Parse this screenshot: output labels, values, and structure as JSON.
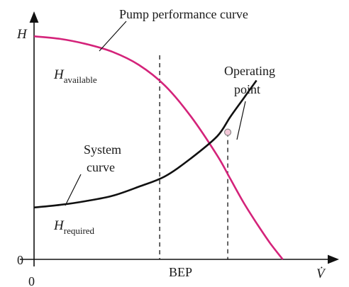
{
  "chart_data": {
    "type": "line",
    "title": "",
    "xlabel": "V̇",
    "ylabel": "H",
    "xlim": [
      0,
      10
    ],
    "ylim": [
      0,
      10
    ],
    "x_ticks": [
      {
        "x": 0,
        "label": "0"
      }
    ],
    "y_ticks": [
      {
        "y": 0,
        "label": "0"
      }
    ],
    "grid": false,
    "legend": "none",
    "series": [
      {
        "key": "pump",
        "name": "Pump performance curve",
        "color": "#d4237a",
        "x": [
          0,
          1,
          2,
          3,
          4,
          5,
          6,
          7,
          7.5,
          8,
          8.5,
          9,
          9.5,
          10
        ],
        "y": [
          8.6,
          8.5,
          8.3,
          8.0,
          7.5,
          6.7,
          5.5,
          4.0,
          3.1,
          2.2,
          1.4,
          0.65,
          0.0,
          -0.55
        ]
      },
      {
        "key": "system",
        "name": "System curve",
        "color": "#111111",
        "x": [
          0,
          1,
          2,
          3,
          4,
          5,
          6,
          7,
          7.5,
          8,
          8.5
        ],
        "y": [
          2.0,
          2.1,
          2.25,
          2.45,
          2.8,
          3.2,
          3.9,
          4.75,
          5.5,
          6.2,
          6.9
        ]
      }
    ],
    "markers": [
      {
        "key": "bep",
        "label": "BEP",
        "x": 4.8,
        "y": 7.5
      },
      {
        "key": "operating",
        "label": "Operating point",
        "x": 7.4,
        "y": 4.9
      }
    ],
    "annotations": {
      "pump_curve": "Pump performance curve",
      "system_curve_line1": "System",
      "system_curve_line2": "curve",
      "h_available_main": "H",
      "h_available_sub": "available",
      "h_required_main": "H",
      "h_required_sub": "required",
      "operating_line1": "Operating",
      "operating_line2": "point"
    }
  }
}
